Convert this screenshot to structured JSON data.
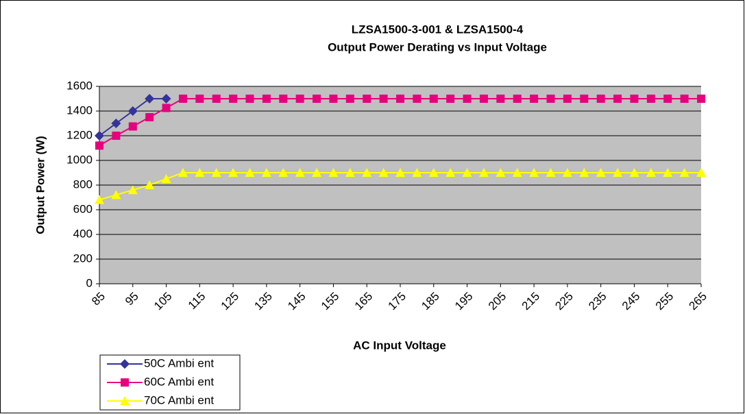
{
  "chart_data": {
    "type": "line",
    "title": "LZSA1500-3-001 & LZSA1500-4",
    "subtitle": "Output Power Derating vs Input Voltage",
    "x_label": "AC Input Voltage",
    "y_label": "Output Power (W)",
    "x": [
      85,
      90,
      95,
      100,
      105,
      110,
      115,
      120,
      125,
      130,
      135,
      140,
      145,
      150,
      155,
      160,
      165,
      170,
      175,
      180,
      185,
      190,
      195,
      200,
      205,
      210,
      215,
      220,
      225,
      230,
      235,
      240,
      245,
      250,
      255,
      260,
      265
    ],
    "xlim": [
      85,
      265
    ],
    "xticks": [
      85,
      95,
      105,
      115,
      125,
      135,
      145,
      155,
      165,
      175,
      185,
      195,
      205,
      215,
      225,
      235,
      245,
      255,
      265
    ],
    "ylim": [
      0,
      1600
    ],
    "yticks": [
      0,
      200,
      400,
      600,
      800,
      1000,
      1200,
      1400,
      1600
    ],
    "grid": true,
    "legend": "bottom-left",
    "series": [
      {
        "name": "50C Ambi ent",
        "color": "#333399",
        "marker": "diamond",
        "values": [
          1200,
          1300,
          1400,
          1500,
          1500,
          null,
          null,
          null,
          null,
          null,
          null,
          null,
          null,
          null,
          null,
          null,
          null,
          null,
          null,
          null,
          null,
          null,
          null,
          null,
          null,
          null,
          null,
          null,
          null,
          null,
          null,
          null,
          null,
          null,
          null,
          null,
          null
        ]
      },
      {
        "name": "60C Ambi ent",
        "color": "#e6007e",
        "marker": "square",
        "values": [
          1120,
          1200,
          1275,
          1350,
          1425,
          1500,
          1500,
          1500,
          1500,
          1500,
          1500,
          1500,
          1500,
          1500,
          1500,
          1500,
          1500,
          1500,
          1500,
          1500,
          1500,
          1500,
          1500,
          1500,
          1500,
          1500,
          1500,
          1500,
          1500,
          1500,
          1500,
          1500,
          1500,
          1500,
          1500,
          1500,
          1500
        ]
      },
      {
        "name": "70C Ambi ent",
        "color": "#ffff00",
        "marker": "triangle",
        "values": [
          680,
          720,
          760,
          800,
          850,
          900,
          900,
          900,
          900,
          900,
          900,
          900,
          900,
          900,
          900,
          900,
          900,
          900,
          900,
          900,
          900,
          900,
          900,
          900,
          900,
          900,
          900,
          900,
          900,
          900,
          900,
          900,
          900,
          900,
          900,
          900,
          900
        ]
      }
    ]
  }
}
